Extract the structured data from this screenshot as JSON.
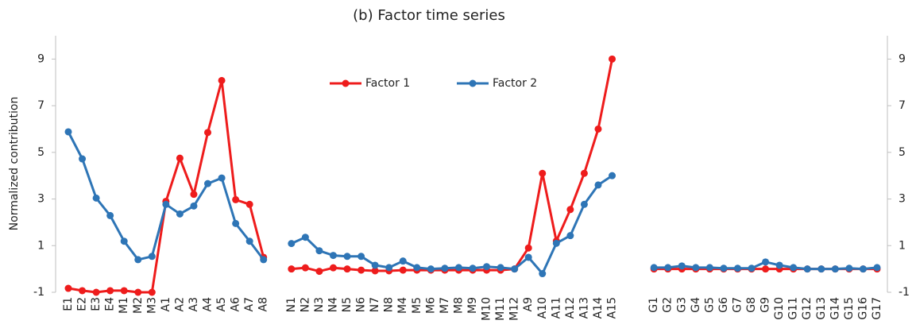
{
  "chart_data": {
    "type": "line",
    "title": "(b) Factor time series",
    "y_label": "Normalized contribution",
    "categories": [
      "E1",
      "E2",
      "E3",
      "E4",
      "M1",
      "M2",
      "M3",
      "A1",
      "A2",
      "A3",
      "A4",
      "A5",
      "A6",
      "A7",
      "A8",
      null,
      "N1",
      "N2",
      "N3",
      "N4",
      "N5",
      "N6",
      "N7",
      "N8",
      "M4",
      "M5",
      "M6",
      "M7",
      "M8",
      "M9",
      "M10",
      "M11",
      "M12",
      "A9",
      "A10",
      "A11",
      "A12",
      "A13",
      "A14",
      "A15",
      null,
      null,
      "G1",
      "G2",
      "G3",
      "G4",
      "G5",
      "G6",
      "G7",
      "G8",
      "G9",
      "G10",
      "G11",
      "G12",
      "G13",
      "G14",
      "G15",
      "G16",
      "G17"
    ],
    "series": [
      {
        "name": "Factor 1",
        "color": "#ee1c1c",
        "values": [
          -0.83,
          -0.93,
          -1,
          -0.93,
          -0.93,
          -1,
          -1,
          2.9,
          4.75,
          3.2,
          5.85,
          8.08,
          2.97,
          2.77,
          0.5,
          null,
          0,
          0.05,
          -0.1,
          0.05,
          0,
          -0.05,
          -0.08,
          -0.08,
          -0.05,
          -0.05,
          -0.05,
          -0.05,
          -0.05,
          -0.05,
          -0.05,
          -0.05,
          0,
          0.9,
          4.1,
          1.2,
          2.55,
          4.1,
          6.0,
          9.0,
          null,
          null,
          0,
          0,
          0,
          0,
          0,
          0,
          0,
          0,
          0,
          0,
          0,
          0,
          0,
          0,
          0,
          0,
          0
        ]
      },
      {
        "name": "Factor 2",
        "color": "#2e75b6",
        "values": [
          5.88,
          4.72,
          3.04,
          2.29,
          1.19,
          0.4,
          0.54,
          2.77,
          2.36,
          2.7,
          3.66,
          3.9,
          1.95,
          1.19,
          0.4,
          null,
          1.09,
          1.36,
          0.78,
          0.58,
          0.54,
          0.54,
          0.16,
          0.06,
          0.34,
          0.06,
          0,
          0.03,
          0.06,
          0.03,
          0.1,
          0.06,
          0,
          0.5,
          -0.2,
          1.1,
          1.43,
          2.77,
          3.6,
          4.0,
          null,
          null,
          0.06,
          0.06,
          0.13,
          0.06,
          0.06,
          0.03,
          0.03,
          0.03,
          0.3,
          0.16,
          0.06,
          0,
          0,
          0,
          0.03,
          0,
          0.06
        ]
      }
    ],
    "ylim": [
      -1,
      10
    ],
    "yticks": [
      -1,
      1,
      3,
      5,
      7,
      9
    ],
    "y2lim": [
      -1,
      10
    ],
    "y2ticks": [
      -1,
      1,
      3,
      5,
      7,
      9
    ],
    "legend": "top-center",
    "grid": false
  }
}
